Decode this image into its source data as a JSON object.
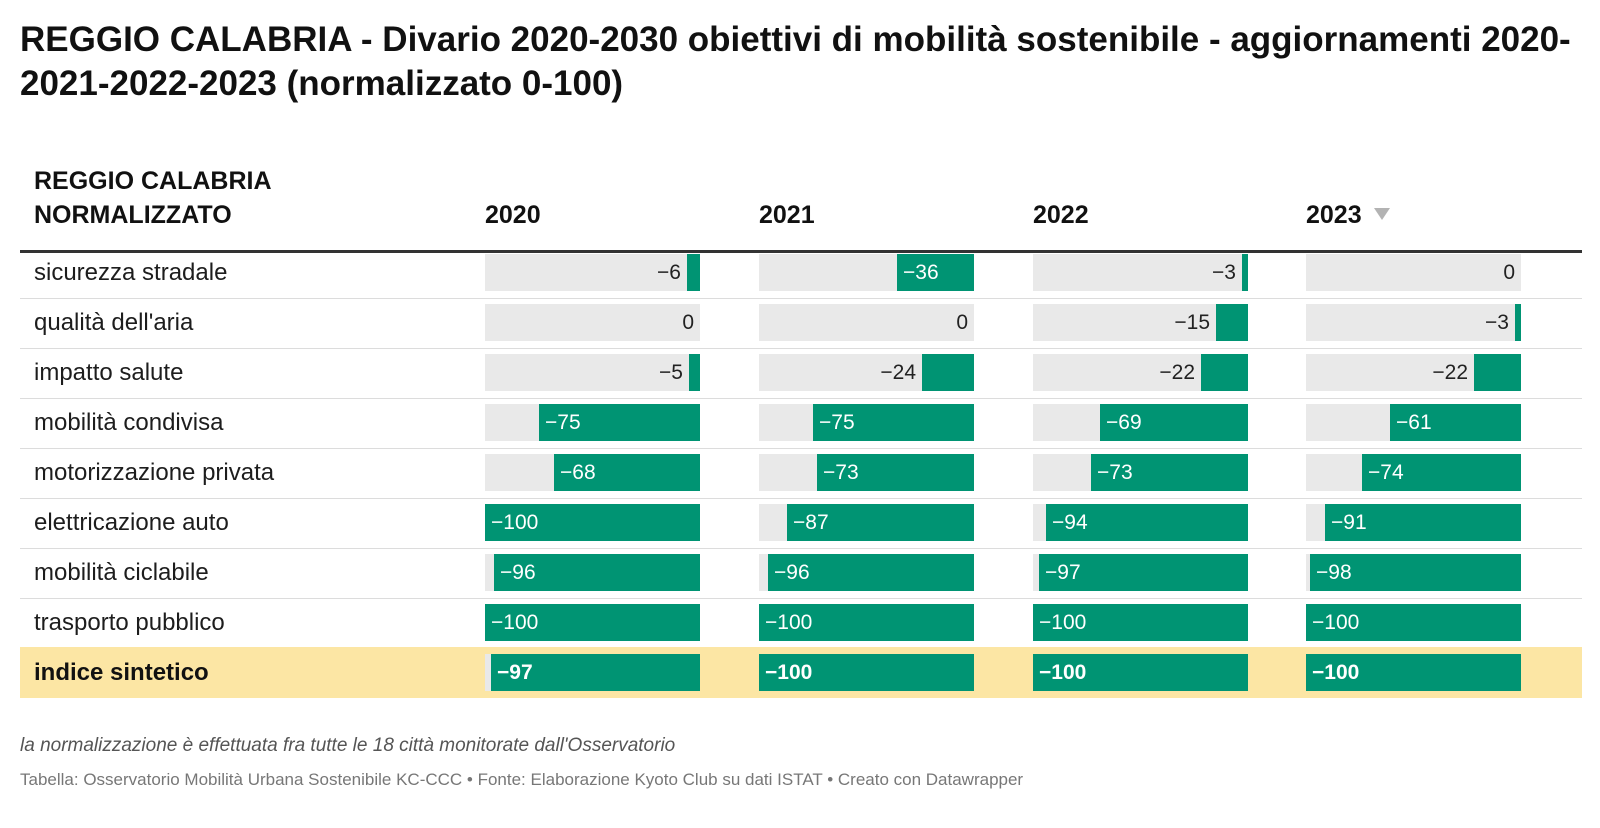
{
  "title": "REGGIO CALABRIA - Divario 2020-2030 obiettivi di mobilità sostenibile - aggiornamenti 2020-2021-2022-2023 (normalizzato 0-100)",
  "table": {
    "label_header": [
      "REGGIO CALABRIA",
      "NORMALIZZATO"
    ],
    "years": [
      "2020",
      "2021",
      "2022",
      "2023"
    ],
    "sort_icon": "sort-descending-icon"
  },
  "colors": {
    "bar": "#009473",
    "track": "#e9e9e9",
    "highlight": "#fce6a4"
  },
  "chart_data": {
    "type": "table",
    "domain": [
      -100,
      0
    ],
    "columns": [
      "2020",
      "2021",
      "2022",
      "2023"
    ],
    "rows": [
      {
        "label": "sicurezza stradale",
        "values": [
          -6,
          -36,
          -3,
          0
        ]
      },
      {
        "label": "qualità dell'aria",
        "values": [
          0,
          0,
          -15,
          -3
        ]
      },
      {
        "label": "impatto salute",
        "values": [
          -5,
          -24,
          -22,
          -22
        ]
      },
      {
        "label": "mobilità condivisa",
        "values": [
          -75,
          -75,
          -69,
          -61
        ]
      },
      {
        "label": "motorizzazione privata",
        "values": [
          -68,
          -73,
          -73,
          -74
        ]
      },
      {
        "label": "elettricazione auto",
        "values": [
          -100,
          -87,
          -94,
          -91
        ]
      },
      {
        "label": "mobilità ciclabile",
        "values": [
          -96,
          -96,
          -97,
          -98
        ]
      },
      {
        "label": "trasporto pubblico",
        "values": [
          -100,
          -100,
          -100,
          -100
        ]
      },
      {
        "label": "indice sintetico",
        "values": [
          -97,
          -100,
          -100,
          -100
        ],
        "highlight": true
      }
    ]
  },
  "notes": "la normalizzazione è effettuata fra tutte le 18 città monitorate dall'Osservatorio",
  "source": "Tabella: Osservatorio Mobilità Urbana Sostenibile KC-CCC • Fonte: Elaborazione Kyoto Club su dati ISTAT • Creato con Datawrapper"
}
